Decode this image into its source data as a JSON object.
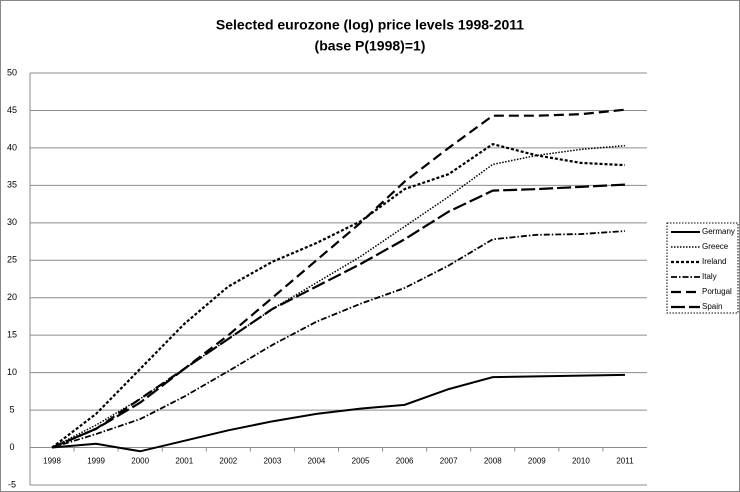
{
  "chart_data": {
    "type": "line",
    "title": [
      "Selected eurozone (log) price levels 1998-2011",
      "(base P(1998)=1)"
    ],
    "categories": [
      "1998",
      "1999",
      "2000",
      "2001",
      "2002",
      "2003",
      "2004",
      "2005",
      "2006",
      "2007",
      "2008",
      "2009",
      "2010",
      "2011"
    ],
    "series": [
      {
        "name": "Germany",
        "color": "#000000",
        "dash": "",
        "width": 2,
        "values": [
          0,
          0.5,
          -0.5,
          0.9,
          2.3,
          3.5,
          4.5,
          5.2,
          5.7,
          7.8,
          9.4,
          9.5,
          9.6,
          9.7
        ]
      },
      {
        "name": "Greece",
        "color": "#000000",
        "dash": "1.5,1.5",
        "width": 1.5,
        "values": [
          0,
          3,
          6.5,
          10.5,
          14.5,
          18.5,
          22,
          25.5,
          29.5,
          33.5,
          37.8,
          39,
          39.8,
          40.3
        ]
      },
      {
        "name": "Ireland",
        "color": "#000000",
        "dash": "3,2",
        "width": 2.2,
        "values": [
          0,
          4.5,
          10.5,
          16.5,
          21.5,
          24.8,
          27.3,
          30.2,
          34.5,
          36.5,
          40.5,
          39,
          38,
          37.7
        ]
      },
      {
        "name": "Italy",
        "color": "#000000",
        "dash": "6,2,1.5,2",
        "width": 1.8,
        "values": [
          0,
          1.8,
          3.8,
          6.8,
          10.2,
          13.7,
          16.8,
          19.2,
          21.3,
          24.3,
          27.8,
          28.4,
          28.5,
          28.9
        ]
      },
      {
        "name": "Portugal",
        "color": "#000000",
        "dash": "10,5",
        "width": 2.2,
        "values": [
          0,
          2.5,
          6.5,
          10.5,
          15,
          20,
          25,
          30,
          35.5,
          40,
          44.3,
          44.3,
          44.5,
          45.1
        ]
      },
      {
        "name": "Spain",
        "color": "#000000",
        "dash": "14,4",
        "width": 2.2,
        "values": [
          0,
          2.5,
          6,
          10.5,
          14.5,
          18.5,
          21.5,
          24.5,
          27.8,
          31.5,
          34.3,
          34.5,
          34.8,
          35.1
        ]
      }
    ],
    "ylim": [
      -5,
      50
    ],
    "yticks": [
      -5,
      0,
      5,
      10,
      15,
      20,
      25,
      30,
      35,
      40,
      45,
      50
    ],
    "grid": true,
    "legend": "right"
  }
}
